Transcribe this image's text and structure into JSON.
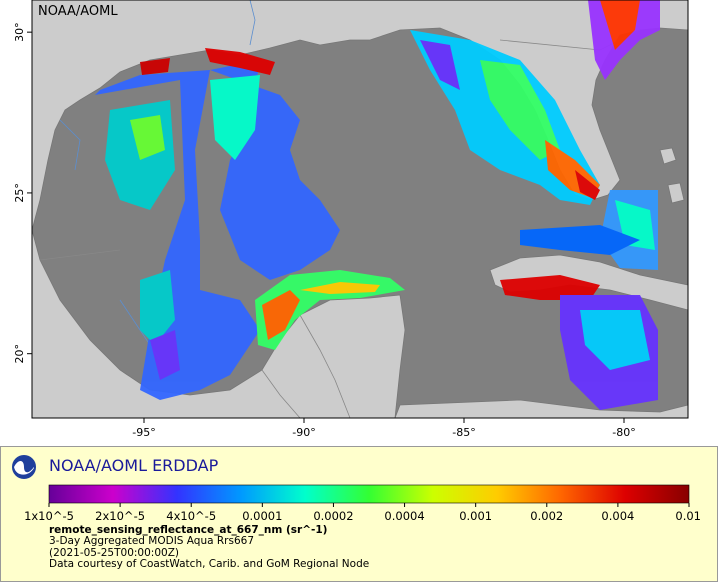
{
  "map": {
    "watermark": "NOAA/AOML",
    "lon_ticks": [
      "-95°",
      "-90°",
      "-85°",
      "-80°"
    ],
    "lat_ticks": [
      "30°",
      "25°",
      "20°"
    ],
    "lon_range": [
      -98.5,
      -78.0
    ],
    "lat_range": [
      18.0,
      31.0
    ],
    "colors": {
      "ocean_nodata": "#808080",
      "land": "#cccccc",
      "border": "#888888",
      "river": "#5b8ecf",
      "coast_high": "#cc0000",
      "coast_mid": "#ffcc00"
    }
  },
  "legend": {
    "title": "NOAA/AOML ERDDAP",
    "logo_icon": "noaa-logo-icon",
    "colorbar_labels": [
      "1x10^-5",
      "2x10^-5",
      "4x10^-5",
      "0.0001",
      "0.0002",
      "0.0004",
      "0.001",
      "0.002",
      "0.004",
      "0.01"
    ],
    "colorbar_colors": [
      "#660099",
      "#cc00cc",
      "#3333ff",
      "#0099ff",
      "#00ffcc",
      "#33ff33",
      "#ccff00",
      "#ffcc00",
      "#ff6600",
      "#dd0000",
      "#880000"
    ],
    "variable": "remote_sensing_reflectance_at_667_nm (sr^-1)",
    "line1": "3-Day Aggregated MODIS Aqua Rrs667",
    "line2": "(2021-05-25T00:00:00Z)",
    "line3": "Data courtesy of CoastWatch, Carib. and GoM Regional Node"
  }
}
